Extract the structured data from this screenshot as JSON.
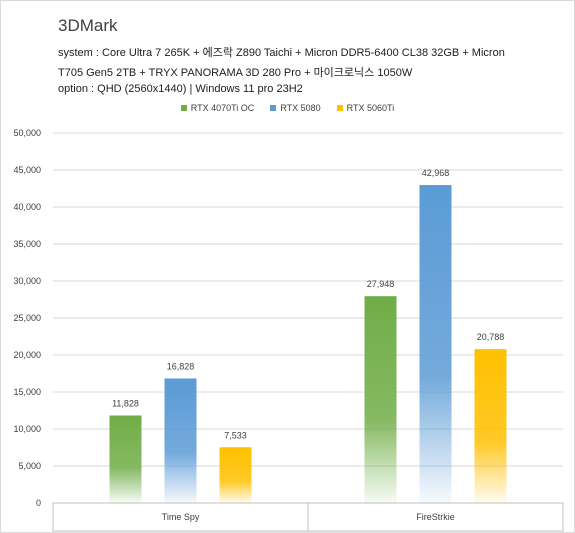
{
  "chart_data": {
    "type": "bar",
    "title": "3DMark",
    "subtitle_lines": [
      "system : Core Ultra 7 265K + 에즈락 Z890 Taichi + Micron DDR5-6400 CL38 32GB + Micron",
      "T705 Gen5 2TB + TRYX PANORAMA 3D 280 Pro + 마이크로닉스 1050W",
      "option :  QHD (2560x1440) | Windows 11 pro 23H2"
    ],
    "categories": [
      "Time Spy",
      "FireStrkie"
    ],
    "series": [
      {
        "name": "RTX 4070Ti OC",
        "values": [
          11828,
          27948
        ],
        "color": "#70ad47",
        "labels": [
          "11,828",
          "27,948"
        ]
      },
      {
        "name": "RTX 5080",
        "values": [
          16828,
          42968
        ],
        "color": "#5b9bd5",
        "labels": [
          "16,828",
          "42,968"
        ]
      },
      {
        "name": "RTX 5060Ti",
        "values": [
          7533,
          20788
        ],
        "color": "#ffc000",
        "labels": [
          "7,533",
          "20,788"
        ]
      }
    ],
    "ylim": [
      0,
      50000
    ],
    "yticks": [
      0,
      5000,
      10000,
      15000,
      20000,
      25000,
      30000,
      35000,
      40000,
      45000,
      50000
    ],
    "ytick_labels": [
      "0",
      "5,000",
      "10,000",
      "15,000",
      "20,000",
      "25,000",
      "30,000",
      "35,000",
      "40,000",
      "45,000",
      "50,000"
    ],
    "grid": true,
    "legend_position": "top-center",
    "xlabel": "",
    "ylabel": ""
  }
}
